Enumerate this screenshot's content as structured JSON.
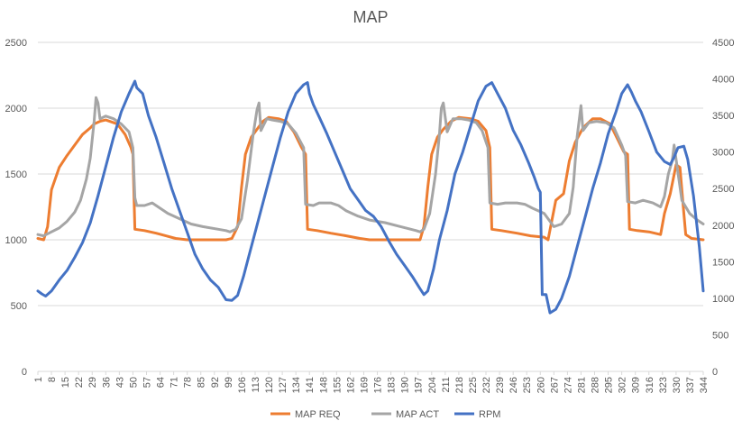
{
  "chart_data": {
    "type": "line",
    "title": "MAP",
    "xlabel": "",
    "ylabel": "",
    "y_left": {
      "min": 0,
      "max": 2500,
      "ticks": [
        0,
        500,
        1000,
        1500,
        2000,
        2500
      ]
    },
    "y_right": {
      "min": 0,
      "max": 4500,
      "ticks": [
        0,
        500,
        1000,
        1500,
        2000,
        2500,
        3000,
        3500,
        4000,
        4500
      ]
    },
    "x_range": [
      1,
      344
    ],
    "x_tick_labels": [
      1,
      8,
      15,
      22,
      29,
      36,
      43,
      50,
      57,
      64,
      71,
      78,
      85,
      92,
      99,
      106,
      113,
      120,
      127,
      134,
      141,
      148,
      155,
      162,
      169,
      176,
      183,
      190,
      197,
      204,
      211,
      218,
      225,
      232,
      239,
      246,
      253,
      260,
      267,
      274,
      281,
      288,
      295,
      302,
      309,
      316,
      323,
      330,
      337,
      344
    ],
    "grid": true,
    "legend_position": "bottom",
    "series": [
      {
        "name": "MAP REQ",
        "axis": "left",
        "color": "#ED7D31",
        "points": [
          [
            1,
            1010
          ],
          [
            4,
            1000
          ],
          [
            6,
            1100
          ],
          [
            8,
            1380
          ],
          [
            12,
            1550
          ],
          [
            16,
            1640
          ],
          [
            20,
            1720
          ],
          [
            24,
            1800
          ],
          [
            28,
            1850
          ],
          [
            30,
            1880
          ],
          [
            33,
            1900
          ],
          [
            36,
            1910
          ],
          [
            42,
            1880
          ],
          [
            46,
            1800
          ],
          [
            49,
            1700
          ],
          [
            50,
            1650
          ],
          [
            51,
            1080
          ],
          [
            56,
            1070
          ],
          [
            62,
            1050
          ],
          [
            67,
            1030
          ],
          [
            72,
            1010
          ],
          [
            78,
            1000
          ],
          [
            90,
            1000
          ],
          [
            98,
            1000
          ],
          [
            101,
            1010
          ],
          [
            104,
            1100
          ],
          [
            106,
            1400
          ],
          [
            108,
            1650
          ],
          [
            111,
            1780
          ],
          [
            114,
            1840
          ],
          [
            117,
            1900
          ],
          [
            120,
            1930
          ],
          [
            125,
            1920
          ],
          [
            129,
            1900
          ],
          [
            133,
            1820
          ],
          [
            137,
            1700
          ],
          [
            139,
            1650
          ],
          [
            140,
            1080
          ],
          [
            145,
            1070
          ],
          [
            152,
            1050
          ],
          [
            160,
            1030
          ],
          [
            167,
            1010
          ],
          [
            172,
            1000
          ],
          [
            185,
            1000
          ],
          [
            196,
            1000
          ],
          [
            198,
            1000
          ],
          [
            200,
            1100
          ],
          [
            202,
            1400
          ],
          [
            204,
            1650
          ],
          [
            207,
            1780
          ],
          [
            210,
            1840
          ],
          [
            214,
            1900
          ],
          [
            218,
            1930
          ],
          [
            224,
            1920
          ],
          [
            228,
            1900
          ],
          [
            232,
            1830
          ],
          [
            234,
            1700
          ],
          [
            235,
            1080
          ],
          [
            240,
            1070
          ],
          [
            248,
            1050
          ],
          [
            255,
            1030
          ],
          [
            262,
            1020
          ],
          [
            263,
            1010
          ],
          [
            264,
            1000
          ],
          [
            266,
            1150
          ],
          [
            268,
            1300
          ],
          [
            272,
            1350
          ],
          [
            275,
            1600
          ],
          [
            278,
            1740
          ],
          [
            282,
            1850
          ],
          [
            287,
            1920
          ],
          [
            291,
            1920
          ],
          [
            296,
            1880
          ],
          [
            300,
            1760
          ],
          [
            303,
            1670
          ],
          [
            305,
            1650
          ],
          [
            306,
            1080
          ],
          [
            310,
            1070
          ],
          [
            316,
            1060
          ],
          [
            322,
            1040
          ],
          [
            324,
            1200
          ],
          [
            327,
            1350
          ],
          [
            330,
            1570
          ],
          [
            332,
            1550
          ],
          [
            334,
            1200
          ],
          [
            335,
            1040
          ],
          [
            338,
            1010
          ],
          [
            344,
            1000
          ]
        ]
      },
      {
        "name": "MAP ACT",
        "axis": "left",
        "color": "#A5A5A5",
        "points": [
          [
            1,
            1040
          ],
          [
            4,
            1030
          ],
          [
            8,
            1060
          ],
          [
            12,
            1090
          ],
          [
            16,
            1140
          ],
          [
            20,
            1210
          ],
          [
            23,
            1300
          ],
          [
            26,
            1460
          ],
          [
            28,
            1620
          ],
          [
            30,
            1900
          ],
          [
            31,
            2080
          ],
          [
            32,
            2040
          ],
          [
            33,
            1920
          ],
          [
            36,
            1940
          ],
          [
            40,
            1920
          ],
          [
            44,
            1880
          ],
          [
            48,
            1820
          ],
          [
            50,
            1700
          ],
          [
            51,
            1320
          ],
          [
            52,
            1260
          ],
          [
            56,
            1260
          ],
          [
            60,
            1280
          ],
          [
            64,
            1240
          ],
          [
            68,
            1200
          ],
          [
            74,
            1160
          ],
          [
            80,
            1120
          ],
          [
            86,
            1100
          ],
          [
            94,
            1080
          ],
          [
            98,
            1070
          ],
          [
            100,
            1060
          ],
          [
            103,
            1080
          ],
          [
            106,
            1160
          ],
          [
            109,
            1450
          ],
          [
            112,
            1800
          ],
          [
            114,
            1990
          ],
          [
            115,
            2040
          ],
          [
            116,
            1830
          ],
          [
            119,
            1920
          ],
          [
            122,
            1910
          ],
          [
            126,
            1900
          ],
          [
            130,
            1880
          ],
          [
            134,
            1810
          ],
          [
            138,
            1700
          ],
          [
            139,
            1270
          ],
          [
            143,
            1260
          ],
          [
            146,
            1280
          ],
          [
            152,
            1280
          ],
          [
            156,
            1260
          ],
          [
            160,
            1220
          ],
          [
            166,
            1180
          ],
          [
            172,
            1150
          ],
          [
            180,
            1130
          ],
          [
            188,
            1100
          ],
          [
            196,
            1070
          ],
          [
            198,
            1060
          ],
          [
            200,
            1080
          ],
          [
            203,
            1200
          ],
          [
            206,
            1500
          ],
          [
            208,
            1800
          ],
          [
            209,
            2000
          ],
          [
            210,
            2040
          ],
          [
            212,
            1820
          ],
          [
            215,
            1920
          ],
          [
            219,
            1920
          ],
          [
            223,
            1910
          ],
          [
            227,
            1890
          ],
          [
            230,
            1830
          ],
          [
            233,
            1700
          ],
          [
            234,
            1280
          ],
          [
            238,
            1270
          ],
          [
            242,
            1280
          ],
          [
            248,
            1280
          ],
          [
            252,
            1270
          ],
          [
            256,
            1240
          ],
          [
            262,
            1200
          ],
          [
            267,
            1100
          ],
          [
            271,
            1120
          ],
          [
            275,
            1200
          ],
          [
            277,
            1400
          ],
          [
            279,
            1780
          ],
          [
            281,
            2020
          ],
          [
            282,
            1830
          ],
          [
            285,
            1890
          ],
          [
            289,
            1900
          ],
          [
            294,
            1890
          ],
          [
            298,
            1850
          ],
          [
            302,
            1720
          ],
          [
            304,
            1640
          ],
          [
            305,
            1290
          ],
          [
            309,
            1280
          ],
          [
            313,
            1300
          ],
          [
            318,
            1280
          ],
          [
            322,
            1250
          ],
          [
            324,
            1330
          ],
          [
            326,
            1500
          ],
          [
            328,
            1600
          ],
          [
            329,
            1720
          ],
          [
            330,
            1610
          ],
          [
            333,
            1300
          ],
          [
            337,
            1200
          ],
          [
            341,
            1150
          ],
          [
            344,
            1120
          ]
        ]
      },
      {
        "name": "RPM",
        "axis": "right",
        "color": "#4472C4",
        "points": [
          [
            1,
            1100
          ],
          [
            3,
            1060
          ],
          [
            5,
            1030
          ],
          [
            8,
            1100
          ],
          [
            12,
            1250
          ],
          [
            16,
            1380
          ],
          [
            20,
            1560
          ],
          [
            24,
            1760
          ],
          [
            28,
            2030
          ],
          [
            32,
            2400
          ],
          [
            36,
            2800
          ],
          [
            40,
            3200
          ],
          [
            44,
            3550
          ],
          [
            48,
            3800
          ],
          [
            51,
            3970
          ],
          [
            52,
            3880
          ],
          [
            55,
            3800
          ],
          [
            58,
            3500
          ],
          [
            62,
            3200
          ],
          [
            66,
            2850
          ],
          [
            70,
            2500
          ],
          [
            74,
            2200
          ],
          [
            78,
            1900
          ],
          [
            82,
            1600
          ],
          [
            86,
            1400
          ],
          [
            90,
            1250
          ],
          [
            94,
            1150
          ],
          [
            98,
            980
          ],
          [
            101,
            970
          ],
          [
            104,
            1040
          ],
          [
            107,
            1300
          ],
          [
            110,
            1600
          ],
          [
            114,
            2000
          ],
          [
            118,
            2400
          ],
          [
            122,
            2800
          ],
          [
            126,
            3200
          ],
          [
            130,
            3550
          ],
          [
            134,
            3800
          ],
          [
            138,
            3920
          ],
          [
            140,
            3950
          ],
          [
            141,
            3800
          ],
          [
            143,
            3650
          ],
          [
            146,
            3480
          ],
          [
            150,
            3250
          ],
          [
            154,
            3000
          ],
          [
            158,
            2750
          ],
          [
            162,
            2500
          ],
          [
            166,
            2350
          ],
          [
            170,
            2200
          ],
          [
            174,
            2120
          ],
          [
            178,
            1980
          ],
          [
            182,
            1780
          ],
          [
            186,
            1600
          ],
          [
            190,
            1450
          ],
          [
            194,
            1300
          ],
          [
            198,
            1130
          ],
          [
            200,
            1050
          ],
          [
            202,
            1100
          ],
          [
            205,
            1400
          ],
          [
            208,
            1800
          ],
          [
            212,
            2200
          ],
          [
            216,
            2700
          ],
          [
            220,
            3000
          ],
          [
            224,
            3350
          ],
          [
            228,
            3700
          ],
          [
            232,
            3900
          ],
          [
            235,
            3950
          ],
          [
            238,
            3800
          ],
          [
            242,
            3600
          ],
          [
            246,
            3300
          ],
          [
            250,
            3100
          ],
          [
            254,
            2850
          ],
          [
            257,
            2650
          ],
          [
            259,
            2500
          ],
          [
            260,
            2450
          ],
          [
            261,
            1050
          ],
          [
            263,
            1050
          ],
          [
            265,
            800
          ],
          [
            268,
            850
          ],
          [
            271,
            1000
          ],
          [
            275,
            1300
          ],
          [
            279,
            1700
          ],
          [
            283,
            2100
          ],
          [
            287,
            2500
          ],
          [
            291,
            2850
          ],
          [
            295,
            3250
          ],
          [
            299,
            3550
          ],
          [
            302,
            3800
          ],
          [
            305,
            3920
          ],
          [
            307,
            3820
          ],
          [
            309,
            3700
          ],
          [
            312,
            3550
          ],
          [
            316,
            3280
          ],
          [
            320,
            3000
          ],
          [
            324,
            2870
          ],
          [
            327,
            2830
          ],
          [
            329,
            2930
          ],
          [
            331,
            3060
          ],
          [
            334,
            3080
          ],
          [
            336,
            2900
          ],
          [
            339,
            2400
          ],
          [
            342,
            1700
          ],
          [
            344,
            1100
          ]
        ]
      }
    ]
  }
}
